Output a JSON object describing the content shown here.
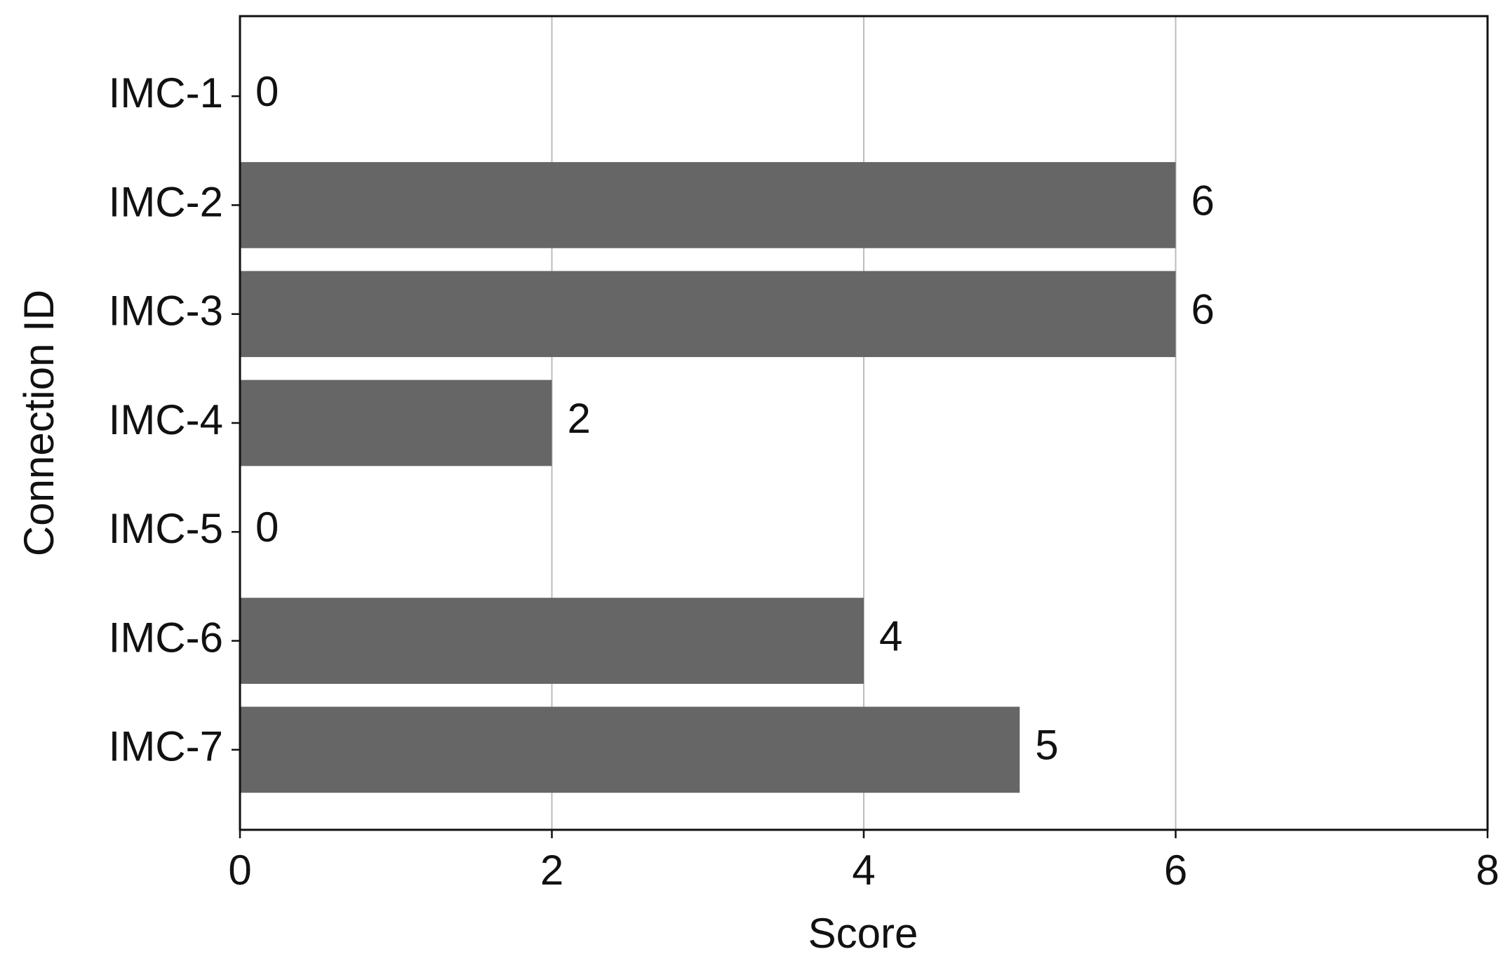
{
  "chart_data": {
    "type": "barh",
    "categories": [
      "IMC-1",
      "IMC-2",
      "IMC-3",
      "IMC-4",
      "IMC-5",
      "IMC-6",
      "IMC-7"
    ],
    "values": [
      0,
      6,
      6,
      2,
      0,
      4,
      5
    ],
    "color": "#666666",
    "xlim": [
      0,
      8
    ],
    "xticks": [
      0,
      2,
      4,
      6,
      8
    ],
    "xlabel": "Score",
    "ylabel": "Connection ID",
    "grid": true
  }
}
